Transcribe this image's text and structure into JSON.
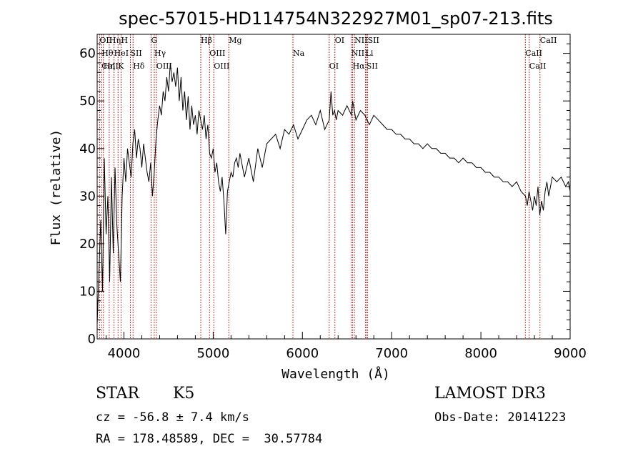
{
  "chart_data": {
    "type": "line",
    "title": "spec-57015-HD114754N322927M01_sp07-213.fits",
    "xlabel": "Wavelength (Å)",
    "ylabel": "Flux (relative)",
    "xlim": [
      3700,
      9000
    ],
    "ylim": [
      0,
      64
    ],
    "xticks": [
      4000,
      5000,
      6000,
      7000,
      8000,
      9000
    ],
    "yticks": [
      0,
      10,
      20,
      30,
      40,
      50,
      60
    ],
    "grid": false,
    "line_color": "#000000",
    "marker_color": "#aa0000",
    "series": [
      {
        "x": [
          3700,
          3720,
          3740,
          3760,
          3780,
          3800,
          3820,
          3840,
          3860,
          3880,
          3900,
          3920,
          3940,
          3960,
          3980,
          4000,
          4020,
          4040,
          4060,
          4080,
          4100,
          4120,
          4140,
          4160,
          4180,
          4200,
          4220,
          4240,
          4260,
          4280,
          4300,
          4320,
          4340,
          4360,
          4380,
          4400,
          4420,
          4440,
          4460,
          4480,
          4500,
          4520,
          4540,
          4560,
          4580,
          4600,
          4620,
          4640,
          4660,
          4680,
          4700,
          4720,
          4740,
          4760,
          4780,
          4800,
          4820,
          4840,
          4860,
          4880,
          4900,
          4920,
          4940,
          4960,
          4980,
          5000,
          5020,
          5040,
          5060,
          5080,
          5100,
          5120,
          5140,
          5160,
          5180,
          5200,
          5220,
          5240,
          5260,
          5280,
          5300,
          5350,
          5400,
          5450,
          5500,
          5550,
          5600,
          5650,
          5700,
          5750,
          5800,
          5850,
          5900,
          5950,
          6000,
          6050,
          6100,
          6150,
          6200,
          6250,
          6300,
          6320,
          6340,
          6360,
          6380,
          6400,
          6450,
          6500,
          6550,
          6563,
          6600,
          6650,
          6700,
          6750,
          6800,
          6850,
          6900,
          6950,
          7000,
          7050,
          7100,
          7150,
          7200,
          7250,
          7300,
          7350,
          7400,
          7450,
          7500,
          7550,
          7600,
          7650,
          7700,
          7750,
          7800,
          7850,
          7900,
          7950,
          8000,
          8050,
          8100,
          8150,
          8200,
          8250,
          8300,
          8350,
          8400,
          8450,
          8500,
          8520,
          8540,
          8560,
          8580,
          8600,
          8620,
          8640,
          8660,
          8680,
          8700,
          8720,
          8740,
          8760,
          8780,
          8800,
          8850,
          8900,
          8950,
          8980,
          9000
        ],
        "y": [
          3,
          14,
          25,
          10,
          38,
          22,
          30,
          12,
          34,
          18,
          36,
          24,
          18,
          12,
          30,
          38,
          33,
          40,
          37,
          34,
          41,
          44,
          38,
          42,
          40,
          36,
          41,
          38,
          35,
          33,
          37,
          30,
          35,
          42,
          46,
          49,
          47,
          52,
          50,
          55,
          52,
          58,
          54,
          56,
          53,
          57,
          50,
          55,
          48,
          52,
          46,
          51,
          44,
          49,
          45,
          47,
          43,
          48,
          46,
          44,
          47,
          42,
          45,
          39,
          38,
          40,
          35,
          37,
          33,
          31,
          34,
          29,
          22,
          31,
          33,
          35,
          34,
          37,
          38,
          36,
          39,
          34,
          38,
          33,
          40,
          36,
          41,
          42,
          43,
          40,
          44,
          43,
          45,
          42,
          44,
          46,
          47,
          45,
          48,
          44,
          46,
          52,
          47,
          48,
          46,
          48,
          47,
          49,
          47,
          50,
          46,
          48,
          47,
          45,
          47,
          46,
          45,
          44,
          44,
          43,
          43,
          42,
          42,
          41,
          41,
          40,
          41,
          40,
          40,
          39,
          39,
          38,
          38,
          37,
          38,
          37,
          37,
          36,
          36,
          35,
          35,
          34,
          34,
          33,
          33,
          32,
          33,
          31,
          30,
          28,
          31,
          29,
          27,
          30,
          28,
          32,
          26,
          29,
          27,
          31,
          33,
          30,
          32,
          34,
          33,
          34,
          32,
          33,
          31
        ]
      }
    ],
    "lines": [
      {
        "x": 3727,
        "labels": [
          "OII"
        ]
      },
      {
        "x": 3750,
        "labels": [
          "Hθ",
          "CaII"
        ]
      },
      {
        "x": 3770,
        "labels": [
          "Hη"
        ]
      },
      {
        "x": 3835,
        "labels": [
          "Hη"
        ]
      },
      {
        "x": 3889,
        "labels": [
          "HeI"
        ]
      },
      {
        "x": 3934,
        "labels": [
          "K"
        ]
      },
      {
        "x": 3968,
        "labels": [
          "H"
        ]
      },
      {
        "x": 4072,
        "labels": [
          "SII"
        ]
      },
      {
        "x": 4102,
        "labels": [
          "Hδ"
        ]
      },
      {
        "x": 4304,
        "labels": [
          "G"
        ]
      },
      {
        "x": 4340,
        "labels": [
          "Hγ"
        ]
      },
      {
        "x": 4363,
        "labels": [
          "OIII"
        ]
      },
      {
        "x": 4861,
        "labels": [
          "Hβ"
        ]
      },
      {
        "x": 4959,
        "labels": [
          "OIII"
        ]
      },
      {
        "x": 5007,
        "labels": [
          "OIII"
        ]
      },
      {
        "x": 5175,
        "labels": [
          "Mg"
        ]
      },
      {
        "x": 5894,
        "labels": [
          "Na"
        ]
      },
      {
        "x": 6300,
        "labels": [
          "OI"
        ]
      },
      {
        "x": 6364,
        "labels": [
          "OI"
        ]
      },
      {
        "x": 6548,
        "labels": [
          "NII"
        ]
      },
      {
        "x": 6563,
        "labels": [
          "Hα"
        ]
      },
      {
        "x": 6583,
        "labels": [
          "NII"
        ]
      },
      {
        "x": 6707,
        "labels": [
          "Li"
        ]
      },
      {
        "x": 6716,
        "labels": [
          "SII"
        ]
      },
      {
        "x": 6731,
        "labels": [
          "SII"
        ]
      },
      {
        "x": 8498,
        "labels": [
          "CaII"
        ]
      },
      {
        "x": 8542,
        "labels": [
          "CaII"
        ]
      },
      {
        "x": 8662,
        "labels": [
          "CaII"
        ]
      }
    ]
  },
  "info": {
    "object_class": "STAR",
    "subclass": "K5",
    "survey": "LAMOST DR3",
    "redshift": "cz = -56.8 ± 7.4 km/s",
    "obs_date": "Obs-Date: 20141223",
    "coords": "RA = 178.48589, DEC =  30.57784"
  }
}
